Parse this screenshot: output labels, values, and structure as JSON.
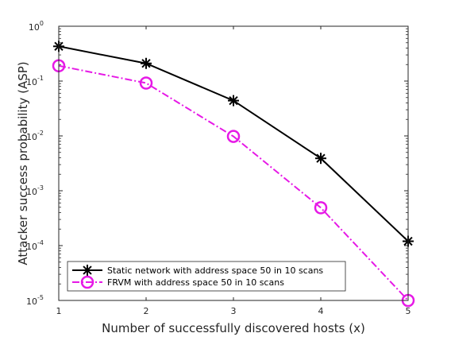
{
  "chart_data": {
    "type": "line",
    "title": "",
    "xlabel": "Number of successfully discovered hosts (x)",
    "ylabel": "Attacker success probability (ASP)",
    "x": [
      1,
      2,
      3,
      4,
      5
    ],
    "x_ticks": [
      "1",
      "2",
      "3",
      "4",
      "5"
    ],
    "xlim": [
      1,
      5
    ],
    "ylim": [
      1e-05,
      1
    ],
    "yscale": "log",
    "y_ticks": [
      {
        "value": 1,
        "base": "10",
        "exp": "0"
      },
      {
        "value": 0.1,
        "base": "10",
        "exp": "-1"
      },
      {
        "value": 0.01,
        "base": "10",
        "exp": "-2"
      },
      {
        "value": 0.001,
        "base": "10",
        "exp": "-3"
      },
      {
        "value": 0.0001,
        "base": "10",
        "exp": "-4"
      },
      {
        "value": 1e-05,
        "base": "10",
        "exp": "-5"
      }
    ],
    "grid": false,
    "legend_position": "bottom-left",
    "series": [
      {
        "name": "Static network with address space 50 in 10 scans",
        "values": [
          0.43,
          0.21,
          0.044,
          0.0039,
          0.00012
        ],
        "color": "#000000",
        "line_style": "solid",
        "marker": "asterisk"
      },
      {
        "name": "FRVM with address space 50 in 10 scans",
        "values": [
          0.19,
          0.092,
          0.0098,
          0.00049,
          1e-05
        ],
        "color": "#e619e6",
        "line_style": "dash-dot",
        "marker": "circle"
      }
    ]
  }
}
